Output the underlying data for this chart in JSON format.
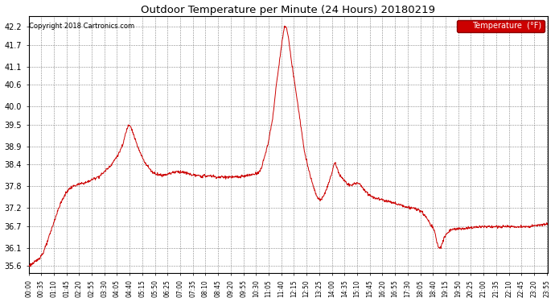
{
  "title": "Outdoor Temperature per Minute (24 Hours) 20180219",
  "copyright": "Copyright 2018 Cartronics.com",
  "legend_label": "Temperature  (°F)",
  "line_color": "#cc0000",
  "legend_bg": "#cc0000",
  "legend_text_color": "#ffffff",
  "background_color": "#ffffff",
  "grid_color": "#888888",
  "yticks": [
    35.6,
    36.1,
    36.7,
    37.2,
    37.8,
    38.4,
    38.9,
    39.5,
    40.0,
    40.6,
    41.1,
    41.7,
    42.2
  ],
  "ylim": [
    35.4,
    42.5
  ],
  "xlim": [
    0,
    1439
  ],
  "xtick_positions": [
    0,
    35,
    70,
    105,
    140,
    175,
    210,
    245,
    280,
    315,
    350,
    385,
    420,
    455,
    490,
    525,
    560,
    595,
    630,
    665,
    700,
    735,
    770,
    805,
    840,
    875,
    910,
    945,
    980,
    1015,
    1050,
    1085,
    1120,
    1155,
    1190,
    1225,
    1260,
    1295,
    1330,
    1365,
    1400,
    1435
  ],
  "xtick_labels": [
    "00:00",
    "00:35",
    "01:10",
    "01:45",
    "02:20",
    "02:55",
    "03:30",
    "04:05",
    "04:40",
    "05:15",
    "05:50",
    "06:25",
    "07:00",
    "07:35",
    "08:10",
    "08:45",
    "09:20",
    "09:55",
    "10:30",
    "11:05",
    "11:40",
    "12:15",
    "12:50",
    "13:25",
    "14:00",
    "14:35",
    "15:10",
    "15:45",
    "16:20",
    "16:55",
    "17:30",
    "18:05",
    "18:40",
    "19:15",
    "19:50",
    "20:25",
    "21:00",
    "21:35",
    "22:10",
    "22:45",
    "23:20",
    "23:55"
  ],
  "control_points": [
    [
      0,
      35.6
    ],
    [
      10,
      35.65
    ],
    [
      20,
      35.72
    ],
    [
      30,
      35.82
    ],
    [
      40,
      35.95
    ],
    [
      50,
      36.2
    ],
    [
      60,
      36.5
    ],
    [
      70,
      36.8
    ],
    [
      80,
      37.1
    ],
    [
      90,
      37.35
    ],
    [
      100,
      37.55
    ],
    [
      110,
      37.7
    ],
    [
      120,
      37.78
    ],
    [
      130,
      37.82
    ],
    [
      140,
      37.85
    ],
    [
      150,
      37.88
    ],
    [
      160,
      37.9
    ],
    [
      170,
      37.95
    ],
    [
      180,
      38.0
    ],
    [
      190,
      38.05
    ],
    [
      200,
      38.1
    ],
    [
      210,
      38.2
    ],
    [
      220,
      38.3
    ],
    [
      230,
      38.4
    ],
    [
      240,
      38.55
    ],
    [
      250,
      38.7
    ],
    [
      255,
      38.82
    ],
    [
      260,
      38.9
    ],
    [
      265,
      39.1
    ],
    [
      270,
      39.3
    ],
    [
      275,
      39.45
    ],
    [
      278,
      39.5
    ],
    [
      280,
      39.5
    ],
    [
      282,
      39.48
    ],
    [
      285,
      39.4
    ],
    [
      290,
      39.25
    ],
    [
      295,
      39.1
    ],
    [
      300,
      38.95
    ],
    [
      305,
      38.82
    ],
    [
      310,
      38.7
    ],
    [
      315,
      38.6
    ],
    [
      320,
      38.5
    ],
    [
      325,
      38.42
    ],
    [
      330,
      38.35
    ],
    [
      335,
      38.28
    ],
    [
      340,
      38.22
    ],
    [
      345,
      38.18
    ],
    [
      350,
      38.15
    ],
    [
      360,
      38.12
    ],
    [
      370,
      38.1
    ],
    [
      380,
      38.12
    ],
    [
      390,
      38.15
    ],
    [
      400,
      38.18
    ],
    [
      410,
      38.2
    ],
    [
      420,
      38.2
    ],
    [
      430,
      38.18
    ],
    [
      440,
      38.15
    ],
    [
      450,
      38.12
    ],
    [
      460,
      38.1
    ],
    [
      470,
      38.08
    ],
    [
      480,
      38.08
    ],
    [
      490,
      38.08
    ],
    [
      500,
      38.08
    ],
    [
      510,
      38.08
    ],
    [
      520,
      38.05
    ],
    [
      530,
      38.05
    ],
    [
      540,
      38.05
    ],
    [
      550,
      38.05
    ],
    [
      560,
      38.05
    ],
    [
      570,
      38.05
    ],
    [
      580,
      38.05
    ],
    [
      590,
      38.06
    ],
    [
      600,
      38.08
    ],
    [
      610,
      38.1
    ],
    [
      620,
      38.12
    ],
    [
      630,
      38.15
    ],
    [
      640,
      38.2
    ],
    [
      645,
      38.3
    ],
    [
      648,
      38.4
    ],
    [
      650,
      38.5
    ],
    [
      655,
      38.65
    ],
    [
      658,
      38.78
    ],
    [
      660,
      38.88
    ],
    [
      663,
      38.95
    ],
    [
      665,
      39.05
    ],
    [
      668,
      39.2
    ],
    [
      670,
      39.35
    ],
    [
      673,
      39.5
    ],
    [
      675,
      39.6
    ],
    [
      677,
      39.75
    ],
    [
      679,
      39.9
    ],
    [
      681,
      40.1
    ],
    [
      683,
      40.3
    ],
    [
      685,
      40.5
    ],
    [
      687,
      40.65
    ],
    [
      689,
      40.82
    ],
    [
      691,
      40.95
    ],
    [
      693,
      41.1
    ],
    [
      695,
      41.25
    ],
    [
      697,
      41.4
    ],
    [
      699,
      41.55
    ],
    [
      701,
      41.7
    ],
    [
      703,
      41.85
    ],
    [
      705,
      41.95
    ],
    [
      707,
      42.1
    ],
    [
      709,
      42.18
    ],
    [
      711,
      42.22
    ],
    [
      713,
      42.2
    ],
    [
      715,
      42.15
    ],
    [
      717,
      42.05
    ],
    [
      720,
      41.88
    ],
    [
      723,
      41.65
    ],
    [
      726,
      41.4
    ],
    [
      730,
      41.1
    ],
    [
      735,
      40.8
    ],
    [
      740,
      40.45
    ],
    [
      745,
      40.1
    ],
    [
      750,
      39.75
    ],
    [
      755,
      39.4
    ],
    [
      760,
      39.05
    ],
    [
      765,
      38.75
    ],
    [
      770,
      38.5
    ],
    [
      775,
      38.3
    ],
    [
      778,
      38.18
    ],
    [
      780,
      38.1
    ],
    [
      783,
      38.0
    ],
    [
      786,
      37.9
    ],
    [
      789,
      37.8
    ],
    [
      792,
      37.7
    ],
    [
      795,
      37.6
    ],
    [
      800,
      37.5
    ],
    [
      805,
      37.45
    ],
    [
      808,
      37.4
    ],
    [
      810,
      37.42
    ],
    [
      812,
      37.45
    ],
    [
      815,
      37.5
    ],
    [
      820,
      37.6
    ],
    [
      825,
      37.72
    ],
    [
      830,
      37.85
    ],
    [
      835,
      38.0
    ],
    [
      840,
      38.15
    ],
    [
      843,
      38.28
    ],
    [
      845,
      38.38
    ],
    [
      848,
      38.45
    ],
    [
      850,
      38.4
    ],
    [
      853,
      38.35
    ],
    [
      856,
      38.28
    ],
    [
      858,
      38.2
    ],
    [
      860,
      38.15
    ],
    [
      863,
      38.1
    ],
    [
      866,
      38.05
    ],
    [
      870,
      38.0
    ],
    [
      875,
      37.95
    ],
    [
      880,
      37.9
    ],
    [
      885,
      37.85
    ],
    [
      890,
      37.82
    ],
    [
      895,
      37.82
    ],
    [
      900,
      37.85
    ],
    [
      905,
      37.88
    ],
    [
      910,
      37.9
    ],
    [
      915,
      37.88
    ],
    [
      920,
      37.82
    ],
    [
      925,
      37.75
    ],
    [
      930,
      37.7
    ],
    [
      935,
      37.65
    ],
    [
      940,
      37.6
    ],
    [
      945,
      37.55
    ],
    [
      950,
      37.52
    ],
    [
      955,
      37.5
    ],
    [
      960,
      37.48
    ],
    [
      970,
      37.45
    ],
    [
      980,
      37.42
    ],
    [
      990,
      37.4
    ],
    [
      1000,
      37.38
    ],
    [
      1010,
      37.35
    ],
    [
      1020,
      37.3
    ],
    [
      1030,
      37.28
    ],
    [
      1040,
      37.25
    ],
    [
      1050,
      37.22
    ],
    [
      1060,
      37.2
    ],
    [
      1070,
      37.18
    ],
    [
      1080,
      37.15
    ],
    [
      1085,
      37.12
    ],
    [
      1090,
      37.08
    ],
    [
      1095,
      37.02
    ],
    [
      1100,
      36.95
    ],
    [
      1105,
      36.88
    ],
    [
      1110,
      36.8
    ],
    [
      1115,
      36.72
    ],
    [
      1120,
      36.65
    ],
    [
      1125,
      36.55
    ],
    [
      1127,
      36.45
    ],
    [
      1129,
      36.35
    ],
    [
      1131,
      36.25
    ],
    [
      1133,
      36.18
    ],
    [
      1135,
      36.12
    ],
    [
      1137,
      36.1
    ],
    [
      1139,
      36.1
    ],
    [
      1141,
      36.12
    ],
    [
      1143,
      36.15
    ],
    [
      1145,
      36.2
    ],
    [
      1148,
      36.28
    ],
    [
      1151,
      36.35
    ],
    [
      1155,
      36.45
    ],
    [
      1160,
      36.5
    ],
    [
      1165,
      36.55
    ],
    [
      1170,
      36.6
    ],
    [
      1175,
      36.62
    ],
    [
      1180,
      36.62
    ],
    [
      1185,
      36.62
    ],
    [
      1190,
      36.62
    ],
    [
      1200,
      36.62
    ],
    [
      1210,
      36.63
    ],
    [
      1220,
      36.65
    ],
    [
      1230,
      36.66
    ],
    [
      1240,
      36.67
    ],
    [
      1250,
      36.68
    ],
    [
      1260,
      36.68
    ],
    [
      1270,
      36.68
    ],
    [
      1280,
      36.68
    ],
    [
      1290,
      36.68
    ],
    [
      1300,
      36.68
    ],
    [
      1310,
      36.68
    ],
    [
      1320,
      36.68
    ],
    [
      1330,
      36.68
    ],
    [
      1340,
      36.68
    ],
    [
      1350,
      36.68
    ],
    [
      1360,
      36.68
    ],
    [
      1370,
      36.68
    ],
    [
      1380,
      36.68
    ],
    [
      1390,
      36.69
    ],
    [
      1400,
      36.7
    ],
    [
      1410,
      36.72
    ],
    [
      1420,
      36.73
    ],
    [
      1430,
      36.74
    ],
    [
      1439,
      36.75
    ]
  ]
}
